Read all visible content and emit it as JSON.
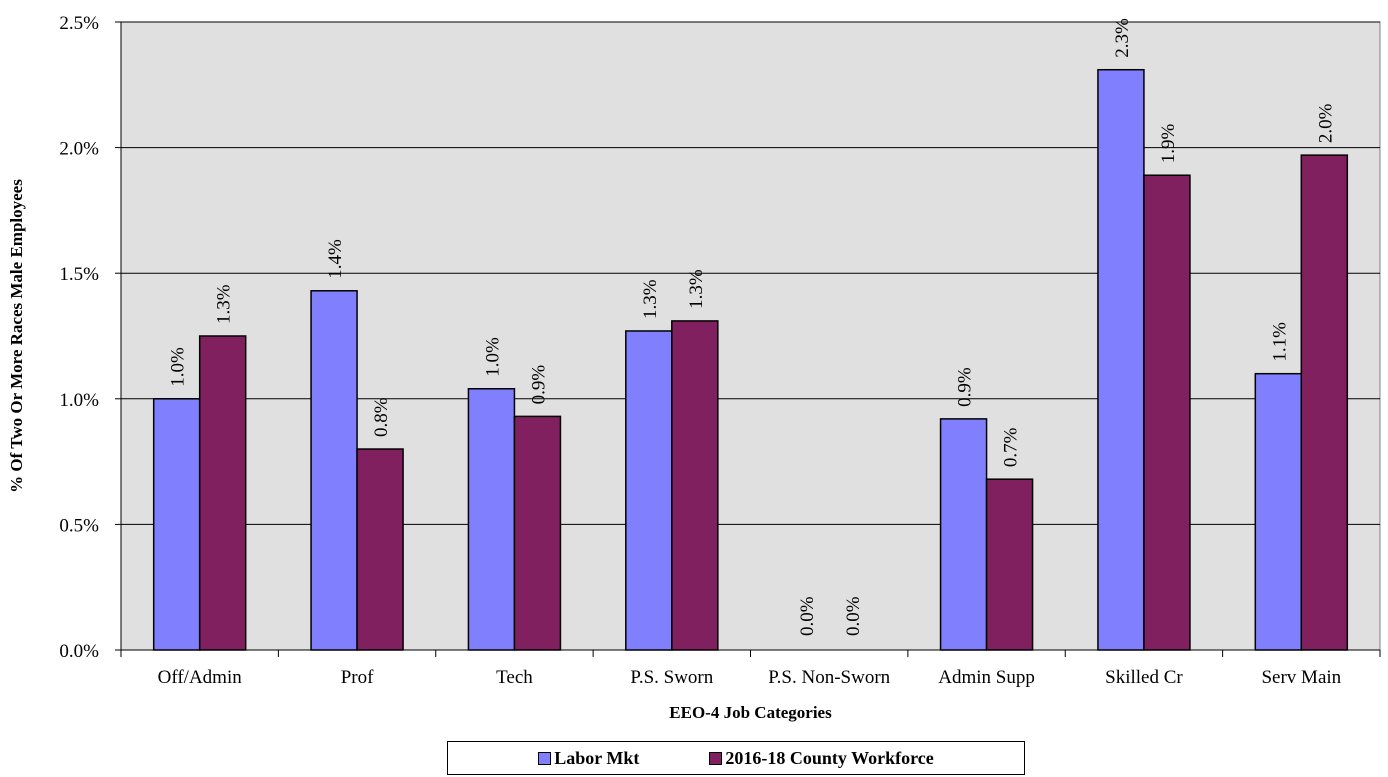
{
  "chart_data": {
    "type": "bar",
    "xlabel": "EEO-4 Job Categories",
    "ylabel": "% Of Two Or More Races Male Employees",
    "ylim": [
      0,
      2.5
    ],
    "yticks": [
      "0.0%",
      "0.5%",
      "1.0%",
      "1.5%",
      "2.0%",
      "2.5%"
    ],
    "grid": true,
    "legend_position": "bottom",
    "categories": [
      "Off/Admin",
      "Prof",
      "Tech",
      "P.S. Sworn",
      "P.S. Non-Sworn",
      "Admin Supp",
      "Skilled Cr",
      "Serv Main"
    ],
    "series": [
      {
        "name": "Labor Mkt",
        "color": "#8080ff",
        "values": [
          1.0,
          1.43,
          1.04,
          1.27,
          0.0,
          0.92,
          2.31,
          1.1
        ],
        "labels": [
          "1.0%",
          "1.4%",
          "1.0%",
          "1.3%",
          "0.0%",
          "0.9%",
          "2.3%",
          "1.1%"
        ]
      },
      {
        "name": "2016-18 County Workforce",
        "color": "#80205f",
        "values": [
          1.25,
          0.8,
          0.93,
          1.31,
          0.0,
          0.68,
          1.89,
          1.97
        ],
        "labels": [
          "1.3%",
          "0.8%",
          "0.9%",
          "1.3%",
          "0.0%",
          "0.7%",
          "1.9%",
          "2.0%"
        ]
      }
    ]
  }
}
